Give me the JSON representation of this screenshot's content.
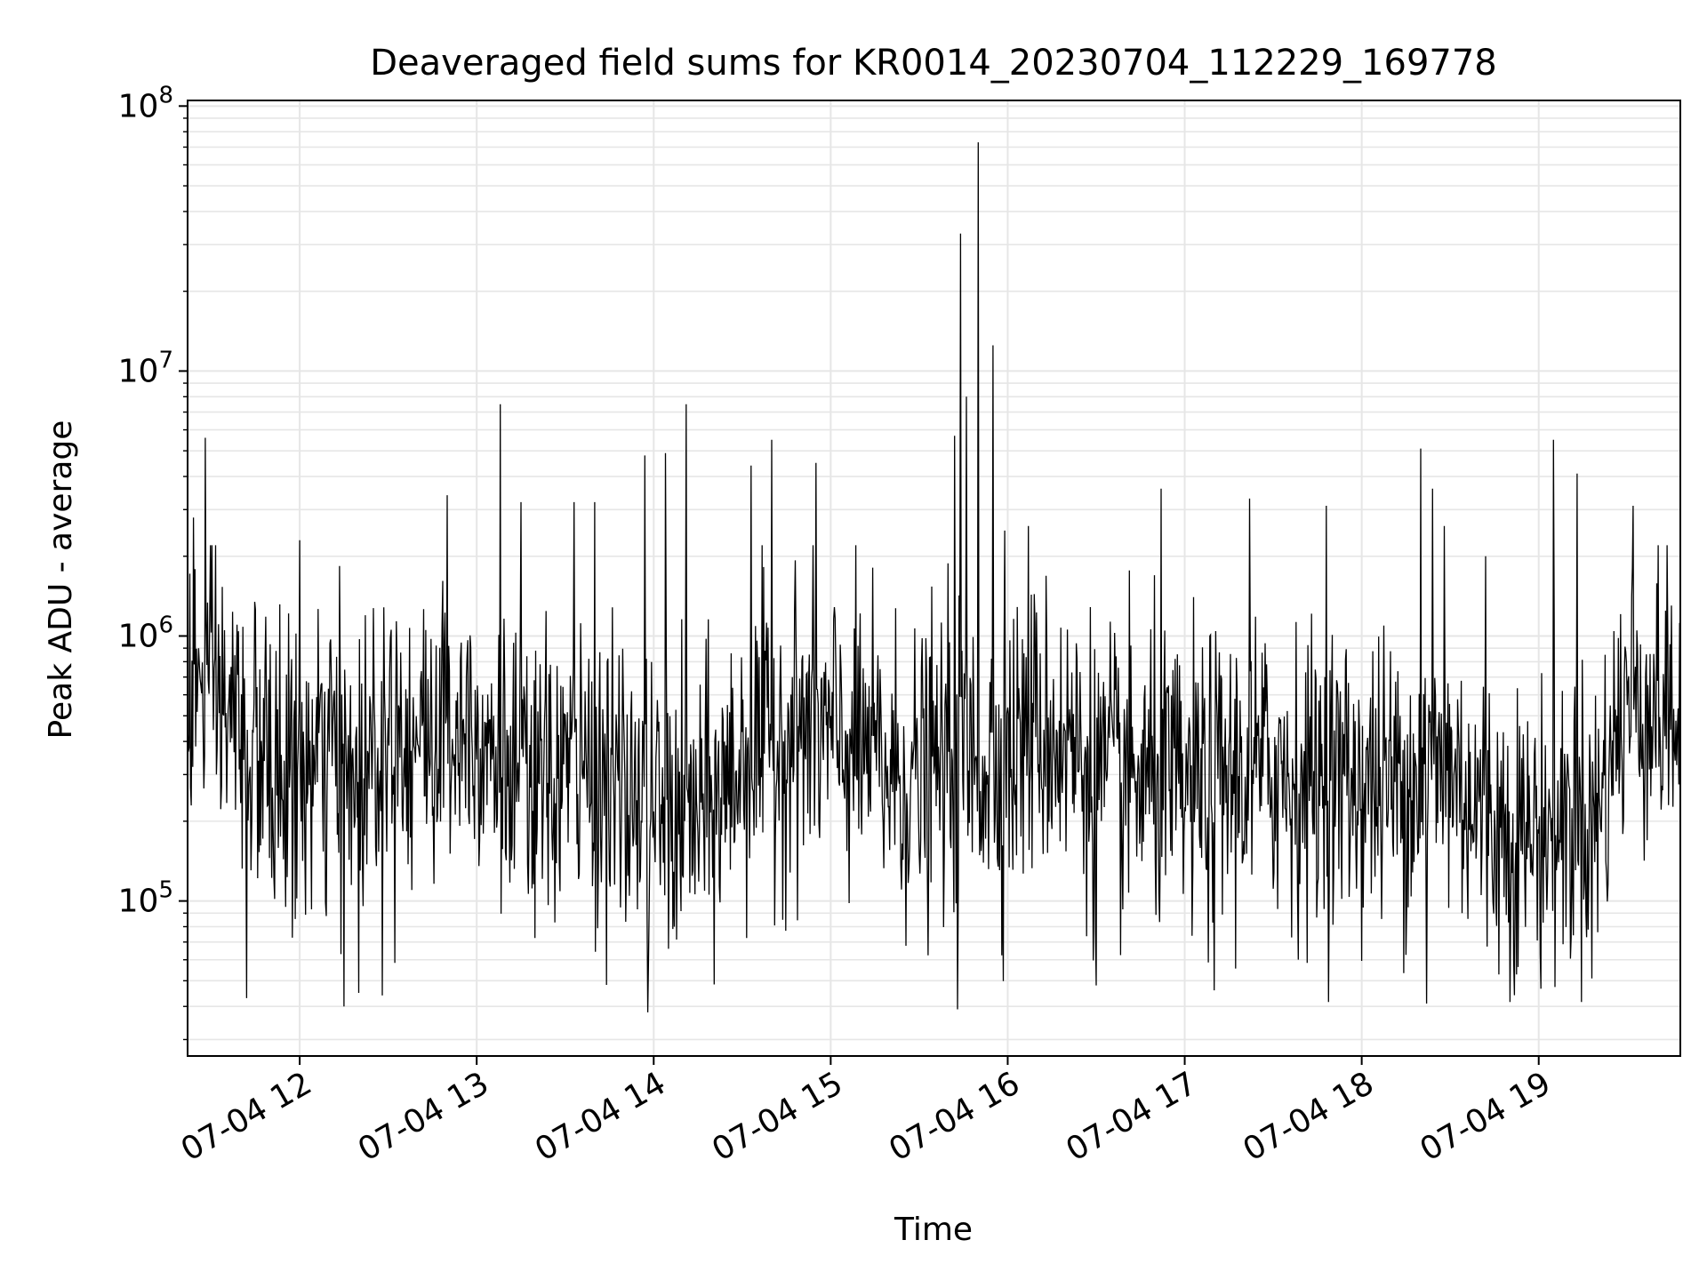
{
  "chart_data": {
    "type": "line",
    "title": "Deaveraged field sums for KR0014_20230704_112229_169778",
    "xlabel": "Time",
    "ylabel": "Peak ADU - average",
    "x_scale": "time",
    "y_scale": "log",
    "xlim": [
      "07-04 11:22",
      "07-04 19:48"
    ],
    "ylim": [
      26000,
      105000000
    ],
    "grid": true,
    "legend": "none",
    "line_color": "#000000",
    "grid_color": "#e6e6e6",
    "x_ticks": [
      "07-04 12",
      "07-04 13",
      "07-04 14",
      "07-04 15",
      "07-04 16",
      "07-04 17",
      "07-04 18",
      "07-04 19"
    ],
    "y_ticks": [
      {
        "value": 100000,
        "base": "10",
        "exp": "5"
      },
      {
        "value": 1000000,
        "base": "10",
        "exp": "6"
      },
      {
        "value": 10000000,
        "base": "10",
        "exp": "7"
      },
      {
        "value": 100000000,
        "base": "10",
        "exp": "8"
      }
    ],
    "series": [
      {
        "x": [
          "07-04 11:22",
          "07-04 11:29",
          "07-04 11:39",
          "07-04 11:50",
          "07-04 12:00",
          "07-04 12:10",
          "07-04 12:20",
          "07-04 12:30",
          "07-04 12:40",
          "07-04 12:50",
          "07-04 13:00",
          "07-04 13:10",
          "07-04 13:20",
          "07-04 13:30",
          "07-04 13:40",
          "07-04 13:50",
          "07-04 14:00",
          "07-04 14:10",
          "07-04 14:20",
          "07-04 14:30",
          "07-04 14:40",
          "07-04 14:50",
          "07-04 15:00",
          "07-04 15:10",
          "07-04 15:20",
          "07-04 15:30",
          "07-04 15:40",
          "07-04 15:50",
          "07-04 16:00",
          "07-04 16:10",
          "07-04 16:20",
          "07-04 16:30",
          "07-04 16:40",
          "07-04 16:50",
          "07-04 17:00",
          "07-04 17:10",
          "07-04 17:20",
          "07-04 17:30",
          "07-04 17:40",
          "07-04 17:50",
          "07-04 18:00",
          "07-04 18:10",
          "07-04 18:20",
          "07-04 18:30",
          "07-04 18:40",
          "07-04 18:50",
          "07-04 19:00",
          "07-04 19:10",
          "07-04 19:20",
          "07-04 19:30",
          "07-04 19:40",
          "07-04 19:48"
        ],
        "baseline": [
          600000,
          650000,
          450000,
          300000,
          280000,
          350000,
          300000,
          500000,
          400000,
          450000,
          500000,
          300000,
          250000,
          320000,
          300000,
          250000,
          220000,
          200000,
          220000,
          350000,
          400000,
          450000,
          400000,
          380000,
          300000,
          280000,
          350000,
          330000,
          350000,
          450000,
          400000,
          300000,
          280000,
          280000,
          250000,
          280000,
          300000,
          320000,
          280000,
          300000,
          280000,
          280000,
          300000,
          320000,
          220000,
          180000,
          180000,
          200000,
          220000,
          600000,
          550000,
          500000
        ],
        "spikes": [
          {
            "x": "07-04 11:24",
            "y": 2800000
          },
          {
            "x": "07-04 11:28",
            "y": 5600000
          },
          {
            "x": "07-04 12:00",
            "y": 2300000
          },
          {
            "x": "07-04 12:50",
            "y": 3400000
          },
          {
            "x": "07-04 13:08",
            "y": 7500000
          },
          {
            "x": "07-04 13:15",
            "y": 3200000
          },
          {
            "x": "07-04 13:33",
            "y": 3200000
          },
          {
            "x": "07-04 13:40",
            "y": 3200000
          },
          {
            "x": "07-04 13:57",
            "y": 4800000
          },
          {
            "x": "07-04 14:04",
            "y": 4900000
          },
          {
            "x": "07-04 14:11",
            "y": 7500000
          },
          {
            "x": "07-04 14:33",
            "y": 4400000
          },
          {
            "x": "07-04 14:40",
            "y": 5500000
          },
          {
            "x": "07-04 14:55",
            "y": 4500000
          },
          {
            "x": "07-04 15:42",
            "y": 5700000
          },
          {
            "x": "07-04 15:44",
            "y": 33000000
          },
          {
            "x": "07-04 15:46",
            "y": 8000000
          },
          {
            "x": "07-04 15:50",
            "y": 73000000
          },
          {
            "x": "07-04 15:55",
            "y": 12500000
          },
          {
            "x": "07-04 15:59",
            "y": 2500000
          },
          {
            "x": "07-04 16:07",
            "y": 2600000
          },
          {
            "x": "07-04 16:52",
            "y": 3600000
          },
          {
            "x": "07-04 17:22",
            "y": 3300000
          },
          {
            "x": "07-04 17:48",
            "y": 3100000
          },
          {
            "x": "07-04 18:20",
            "y": 5100000
          },
          {
            "x": "07-04 18:24",
            "y": 3600000
          },
          {
            "x": "07-04 18:28",
            "y": 2600000
          },
          {
            "x": "07-04 18:42",
            "y": 2000000
          },
          {
            "x": "07-04 19:05",
            "y": 5500000
          },
          {
            "x": "07-04 19:13",
            "y": 4100000
          },
          {
            "x": "07-04 19:32",
            "y": 3100000
          }
        ],
        "dips": [
          {
            "x": "07-04 11:42",
            "y": 43000
          },
          {
            "x": "07-04 12:15",
            "y": 40000
          },
          {
            "x": "07-04 12:20",
            "y": 45000
          },
          {
            "x": "07-04 12:28",
            "y": 44000
          },
          {
            "x": "07-04 13:58",
            "y": 38000
          },
          {
            "x": "07-04 15:43",
            "y": 39000
          },
          {
            "x": "07-04 16:30",
            "y": 48000
          },
          {
            "x": "07-04 17:10",
            "y": 46000
          },
          {
            "x": "07-04 18:22",
            "y": 41000
          },
          {
            "x": "07-04 19:18",
            "y": 51000
          }
        ]
      }
    ]
  }
}
